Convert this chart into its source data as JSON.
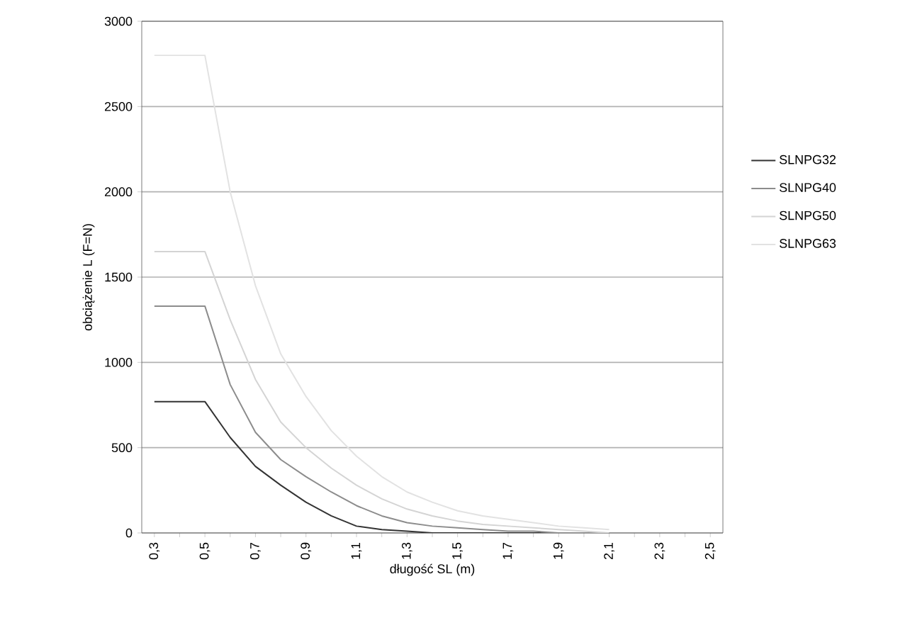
{
  "chart_data": {
    "type": "line",
    "xlabel": "długość SL (m)",
    "ylabel": "obciążenie L (F=N)",
    "x": [
      0.3,
      0.4,
      0.5,
      0.6,
      0.7,
      0.8,
      0.9,
      1.0,
      1.1,
      1.2,
      1.3,
      1.4,
      1.5,
      1.6,
      1.7,
      1.8,
      1.9,
      2.0,
      2.1
    ],
    "series": [
      {
        "name": "SLNPG32",
        "color": "#333333",
        "values": [
          770,
          770,
          770,
          560,
          390,
          280,
          180,
          100,
          40,
          20,
          10,
          0,
          0,
          0,
          0,
          0,
          0,
          0,
          0
        ]
      },
      {
        "name": "SLNPG40",
        "color": "#8c8c8c",
        "values": [
          1330,
          1330,
          1330,
          870,
          590,
          430,
          330,
          240,
          160,
          100,
          60,
          40,
          30,
          20,
          10,
          10,
          0,
          0,
          0
        ]
      },
      {
        "name": "SLNPG50",
        "color": "#d4d4d4",
        "values": [
          1650,
          1650,
          1650,
          1250,
          900,
          650,
          500,
          380,
          280,
          200,
          140,
          100,
          70,
          50,
          40,
          30,
          20,
          10,
          0
        ]
      },
      {
        "name": "SLNPG63",
        "color": "#e2e2e2",
        "values": [
          2800,
          2800,
          2800,
          2000,
          1450,
          1050,
          800,
          600,
          450,
          330,
          240,
          180,
          130,
          100,
          80,
          60,
          40,
          30,
          20
        ]
      }
    ],
    "xlim": [
      0.25,
      2.55
    ],
    "xticks": [
      {
        "value": 0.3,
        "label": "0,3"
      },
      {
        "value": 0.4,
        "label": null
      },
      {
        "value": 0.5,
        "label": "0,5"
      },
      {
        "value": 0.6,
        "label": null
      },
      {
        "value": 0.7,
        "label": "0,7"
      },
      {
        "value": 0.8,
        "label": null
      },
      {
        "value": 0.9,
        "label": "0,9"
      },
      {
        "value": 1.0,
        "label": null
      },
      {
        "value": 1.1,
        "label": "1,1"
      },
      {
        "value": 1.2,
        "label": null
      },
      {
        "value": 1.3,
        "label": "1,3"
      },
      {
        "value": 1.4,
        "label": null
      },
      {
        "value": 1.5,
        "label": "1,5"
      },
      {
        "value": 1.6,
        "label": null
      },
      {
        "value": 1.7,
        "label": "1,7"
      },
      {
        "value": 1.8,
        "label": null
      },
      {
        "value": 1.9,
        "label": "1,9"
      },
      {
        "value": 2.0,
        "label": null
      },
      {
        "value": 2.1,
        "label": "2,1"
      },
      {
        "value": 2.2,
        "label": null
      },
      {
        "value": 2.3,
        "label": "2,3"
      },
      {
        "value": 2.4,
        "label": null
      },
      {
        "value": 2.5,
        "label": "2,5"
      }
    ],
    "ylim": [
      0,
      3000
    ],
    "yticks": [
      0,
      500,
      1000,
      1500,
      2000,
      2500,
      3000
    ],
    "grid": "y",
    "legend": "right",
    "marker": "none",
    "line_style": "solid"
  }
}
